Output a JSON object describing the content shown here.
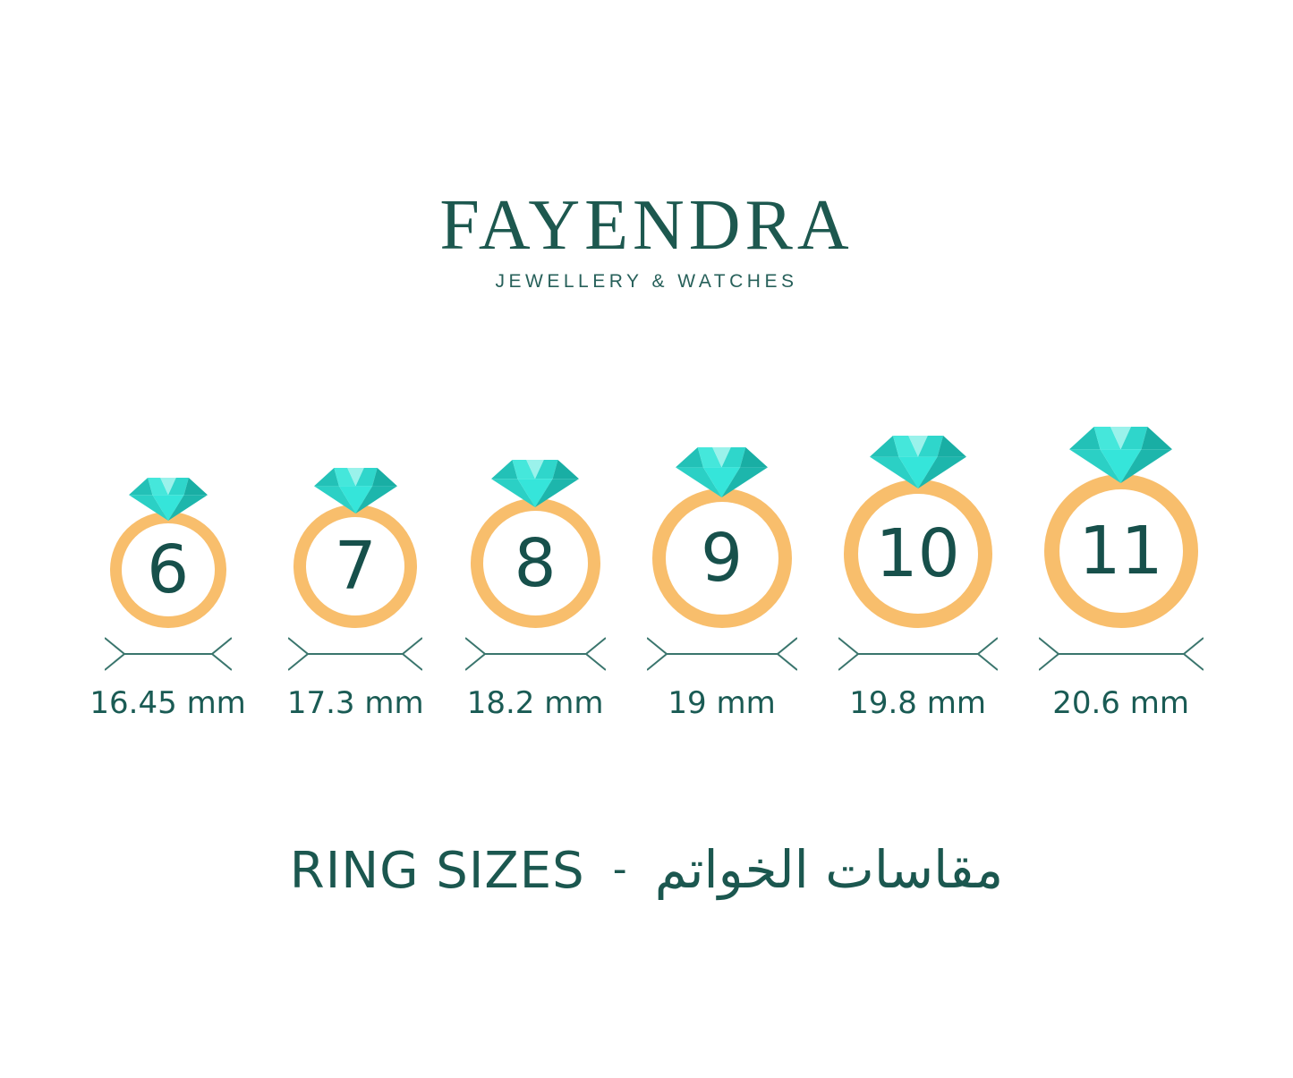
{
  "brand": {
    "name": "FAYENDRA",
    "tagline": "JEWELLERY & WATCHES"
  },
  "rings": [
    {
      "size": "6",
      "diameter": "16.45 mm"
    },
    {
      "size": "7",
      "diameter": "17.3 mm"
    },
    {
      "size": "8",
      "diameter": "18.2 mm"
    },
    {
      "size": "9",
      "diameter": "19 mm"
    },
    {
      "size": "10",
      "diameter": "19.8 mm"
    },
    {
      "size": "11",
      "diameter": "20.6 mm"
    }
  ],
  "caption": {
    "en": "RING SIZES",
    "separator": "-",
    "ar": "مقاسات الخواتم"
  },
  "icons": {
    "diamond": "diamond-gem-icon",
    "arrow": "dimension-double-arrow-icon"
  },
  "colors": {
    "text_teal": "#1B574F",
    "logo_teal": "#1D584F",
    "number_teal": "#17504B",
    "arrow_teal": "#3A756D",
    "band_orange": "#F8BE6C",
    "diamond": {
      "crown_left_corner": "#23C1B7",
      "crown_left": "#45E7DB",
      "crown_center": "#9AF2EB",
      "crown_right": "#2FD6CB",
      "crown_right_corner": "#19AEA4",
      "pavilion_left": "#2BD0C5",
      "pavilion_center": "#35E5DA",
      "pavilion_right": "#1DB6AC"
    }
  }
}
